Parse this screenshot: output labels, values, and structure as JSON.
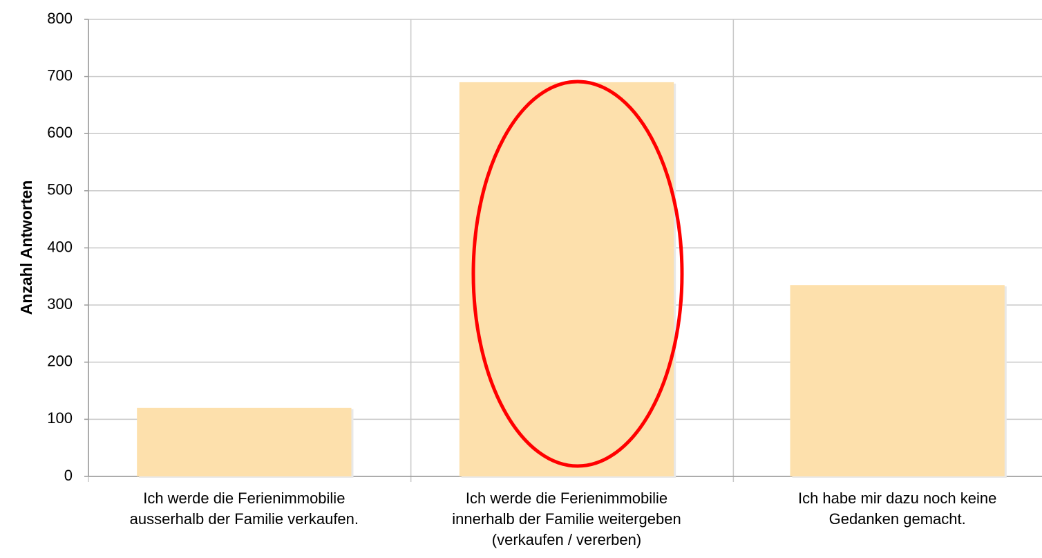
{
  "chart_data": {
    "type": "bar",
    "y_label": "Anzahl Antworten",
    "categories": [
      "Ich werde die Ferienimmobilie\nausserhalb der Familie verkaufen.",
      "Ich werde die Ferienimmobilie\ninnerhalb der Familie weitergeben\n(verkaufen / vererben)",
      "Ich habe mir dazu noch keine\nGedanken gemacht."
    ],
    "values": [
      120,
      690,
      335
    ],
    "color": "#fde0ac",
    "ylim": [
      0,
      800
    ],
    "yticks": [
      0,
      100,
      200,
      300,
      400,
      500,
      600,
      700,
      800
    ],
    "grid": true
  }
}
